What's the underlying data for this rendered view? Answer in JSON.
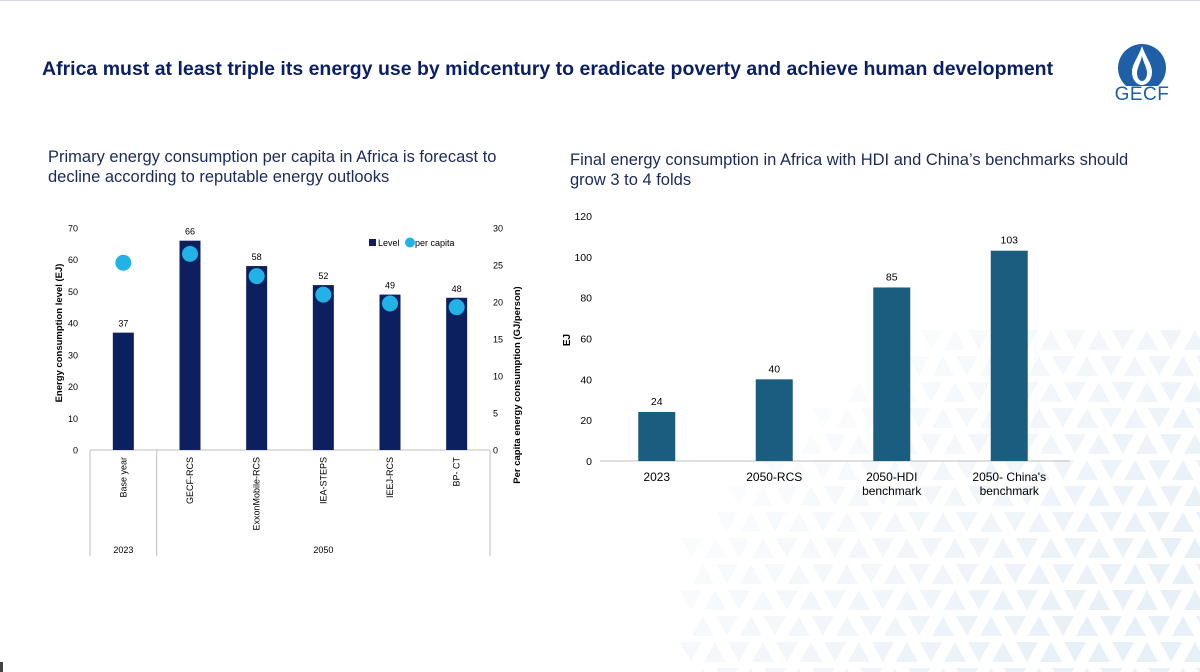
{
  "title": "Africa must at least triple its energy use by midcentury to eradicate poverty and achieve human development",
  "logo": {
    "text": "GECF",
    "icon": "flame-drop-icon"
  },
  "left_panel": {
    "subtitle": "Primary energy consumption per capita in Africa is forecast to decline according to reputable energy outlooks"
  },
  "right_panel": {
    "subtitle": "Final energy consumption in Africa with HDI and China’s benchmarks should grow 3 to 4 folds"
  },
  "colors": {
    "navy": "#0c1f5e",
    "cyan": "#22b2e6",
    "teal": "#1b5d7e",
    "title": "#0b1f66"
  },
  "chart_data": [
    {
      "type": "bar",
      "categories": [
        "Base year",
        "GECF-RCS",
        "ExxonMobile-RCS",
        "IEA-STEPS",
        "IEEJ-RCS",
        "BP- CT"
      ],
      "category_groups": [
        {
          "label": "2023",
          "categories": [
            "Base year"
          ]
        },
        {
          "label": "2050",
          "categories": [
            "GECF-RCS",
            "ExxonMobile-RCS",
            "IEA-STEPS",
            "IEEJ-RCS",
            "BP- CT"
          ]
        }
      ],
      "series": [
        {
          "name": "Level",
          "type": "bar",
          "axis": "left",
          "values": [
            37,
            66,
            58,
            52,
            49,
            48
          ]
        },
        {
          "name": "per capita",
          "type": "scatter",
          "axis": "right",
          "values": [
            25.3,
            26.5,
            23.5,
            21.0,
            19.8,
            19.3
          ]
        }
      ],
      "ylabel": "Energy consumption level (EJ)",
      "y2label": "Per capita energy consumption (GJ/person)",
      "ylim": [
        0,
        70
      ],
      "yticks": [
        0,
        10,
        20,
        30,
        40,
        50,
        60,
        70
      ],
      "y2lim": [
        0,
        30
      ],
      "y2ticks": [
        0,
        5,
        10,
        15,
        20,
        25,
        30
      ],
      "legend": "top-right",
      "grid": false,
      "data_labels": true
    },
    {
      "type": "bar",
      "categories": [
        "2023",
        "2050-RCS",
        "2050-HDI benchmark",
        "2050- China's benchmark"
      ],
      "values": [
        24,
        40,
        85,
        103
      ],
      "ylabel": "EJ",
      "ylim": [
        0,
        120
      ],
      "yticks": [
        0,
        20,
        40,
        60,
        80,
        100,
        120
      ],
      "grid": false,
      "data_labels": true
    }
  ]
}
